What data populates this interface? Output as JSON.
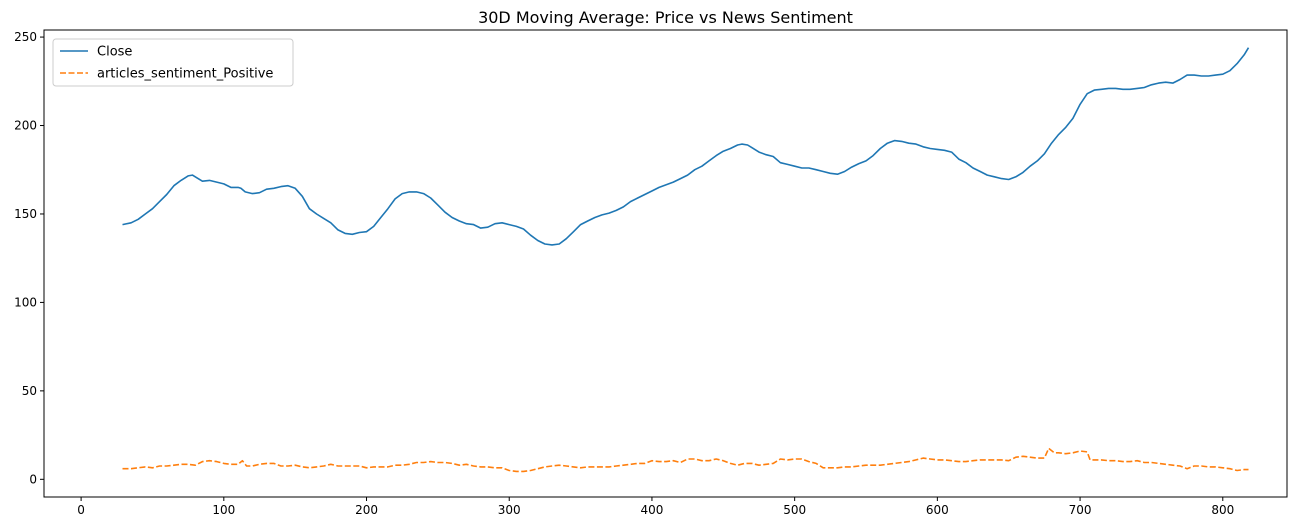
{
  "chart_data": {
    "type": "line",
    "title": "30D Moving Average: Price vs News Sentiment",
    "xlabel": "",
    "ylabel": "",
    "xlim": [
      -26,
      845
    ],
    "ylim": [
      -10,
      254
    ],
    "xticks": [
      0,
      100,
      200,
      300,
      400,
      500,
      600,
      700,
      800
    ],
    "yticks": [
      0,
      50,
      100,
      150,
      200,
      250
    ],
    "legend_position": "upper left",
    "colors": {
      "Close": "#1f77b4",
      "articles_sentiment_Positive": "#ff7f0e"
    },
    "series": [
      {
        "name": "Close",
        "style": "solid",
        "points": [
          [
            29,
            144
          ],
          [
            35,
            145
          ],
          [
            40,
            147
          ],
          [
            45,
            150
          ],
          [
            50,
            153
          ],
          [
            55,
            157
          ],
          [
            60,
            161
          ],
          [
            65,
            166
          ],
          [
            70,
            169
          ],
          [
            75,
            171.5
          ],
          [
            78,
            172
          ],
          [
            82,
            170
          ],
          [
            85,
            168.5
          ],
          [
            90,
            169
          ],
          [
            95,
            168
          ],
          [
            100,
            167
          ],
          [
            105,
            165
          ],
          [
            110,
            165
          ],
          [
            112,
            164.5
          ],
          [
            115,
            162.5
          ],
          [
            120,
            161.5
          ],
          [
            125,
            162
          ],
          [
            130,
            164
          ],
          [
            135,
            164.5
          ],
          [
            140,
            165.5
          ],
          [
            145,
            166
          ],
          [
            150,
            164.5
          ],
          [
            155,
            160
          ],
          [
            160,
            153
          ],
          [
            165,
            150
          ],
          [
            170,
            147.5
          ],
          [
            175,
            145
          ],
          [
            180,
            141
          ],
          [
            185,
            139
          ],
          [
            190,
            138.5
          ],
          [
            195,
            139.5
          ],
          [
            200,
            140
          ],
          [
            205,
            143
          ],
          [
            210,
            148
          ],
          [
            215,
            153
          ],
          [
            220,
            158.5
          ],
          [
            225,
            161.5
          ],
          [
            230,
            162.5
          ],
          [
            235,
            162.5
          ],
          [
            240,
            161.5
          ],
          [
            245,
            159
          ],
          [
            250,
            155
          ],
          [
            255,
            151
          ],
          [
            260,
            148
          ],
          [
            265,
            146
          ],
          [
            270,
            144.5
          ],
          [
            275,
            144
          ],
          [
            280,
            142
          ],
          [
            285,
            142.5
          ],
          [
            290,
            144.5
          ],
          [
            295,
            145
          ],
          [
            300,
            144
          ],
          [
            305,
            143
          ],
          [
            310,
            141.5
          ],
          [
            315,
            138
          ],
          [
            320,
            135
          ],
          [
            325,
            133
          ],
          [
            330,
            132.5
          ],
          [
            335,
            133
          ],
          [
            340,
            136
          ],
          [
            345,
            140
          ],
          [
            350,
            144
          ],
          [
            355,
            146
          ],
          [
            360,
            148
          ],
          [
            365,
            149.5
          ],
          [
            370,
            150.5
          ],
          [
            375,
            152
          ],
          [
            380,
            154
          ],
          [
            385,
            157
          ],
          [
            390,
            159
          ],
          [
            395,
            161
          ],
          [
            400,
            163
          ],
          [
            405,
            165
          ],
          [
            410,
            166.5
          ],
          [
            415,
            168
          ],
          [
            420,
            170
          ],
          [
            425,
            172
          ],
          [
            430,
            175
          ],
          [
            435,
            177
          ],
          [
            440,
            180
          ],
          [
            445,
            183
          ],
          [
            450,
            185.5
          ],
          [
            455,
            187
          ],
          [
            460,
            189
          ],
          [
            463,
            189.5
          ],
          [
            467,
            189
          ],
          [
            470,
            187.5
          ],
          [
            475,
            185
          ],
          [
            480,
            183.5
          ],
          [
            485,
            182.5
          ],
          [
            490,
            179
          ],
          [
            495,
            178
          ],
          [
            500,
            177
          ],
          [
            505,
            176
          ],
          [
            510,
            176
          ],
          [
            515,
            175
          ],
          [
            520,
            174
          ],
          [
            525,
            173
          ],
          [
            530,
            172.5
          ],
          [
            535,
            174
          ],
          [
            540,
            176.5
          ],
          [
            545,
            178.5
          ],
          [
            550,
            180
          ],
          [
            555,
            183
          ],
          [
            560,
            187
          ],
          [
            565,
            190
          ],
          [
            570,
            191.5
          ],
          [
            575,
            191
          ],
          [
            580,
            190
          ],
          [
            585,
            189.5
          ],
          [
            590,
            188
          ],
          [
            595,
            187
          ],
          [
            600,
            186.5
          ],
          [
            605,
            186
          ],
          [
            610,
            185
          ],
          [
            615,
            181
          ],
          [
            620,
            179
          ],
          [
            625,
            176
          ],
          [
            630,
            174
          ],
          [
            635,
            172
          ],
          [
            640,
            171
          ],
          [
            645,
            170
          ],
          [
            650,
            169.5
          ],
          [
            655,
            171
          ],
          [
            660,
            173.5
          ],
          [
            665,
            177
          ],
          [
            670,
            180
          ],
          [
            675,
            184
          ],
          [
            680,
            190
          ],
          [
            685,
            195
          ],
          [
            690,
            199
          ],
          [
            695,
            204
          ],
          [
            700,
            212
          ],
          [
            705,
            218
          ],
          [
            710,
            220
          ],
          [
            715,
            220.5
          ],
          [
            720,
            221
          ],
          [
            725,
            221
          ],
          [
            730,
            220.5
          ],
          [
            735,
            220.5
          ],
          [
            740,
            221
          ],
          [
            745,
            221.5
          ],
          [
            750,
            223
          ],
          [
            755,
            224
          ],
          [
            760,
            224.5
          ],
          [
            765,
            224
          ],
          [
            770,
            226
          ],
          [
            775,
            228.5
          ],
          [
            780,
            228.5
          ],
          [
            785,
            228
          ],
          [
            790,
            228
          ],
          [
            795,
            228.5
          ],
          [
            800,
            229
          ],
          [
            805,
            231
          ],
          [
            810,
            235
          ],
          [
            815,
            240
          ],
          [
            818,
            244
          ]
        ]
      },
      {
        "name": "articles_sentiment_Positive",
        "style": "dashed",
        "points": [
          [
            29,
            6
          ],
          [
            35,
            6
          ],
          [
            40,
            6.5
          ],
          [
            45,
            7
          ],
          [
            50,
            6.5
          ],
          [
            55,
            7.5
          ],
          [
            60,
            7.5
          ],
          [
            65,
            8
          ],
          [
            70,
            8.5
          ],
          [
            75,
            8.5
          ],
          [
            80,
            8
          ],
          [
            85,
            10
          ],
          [
            90,
            10.5
          ],
          [
            95,
            10
          ],
          [
            100,
            9
          ],
          [
            105,
            8.5
          ],
          [
            110,
            8.5
          ],
          [
            113,
            10.5
          ],
          [
            116,
            7.5
          ],
          [
            120,
            7.5
          ],
          [
            125,
            8.5
          ],
          [
            130,
            9
          ],
          [
            135,
            9
          ],
          [
            140,
            7.5
          ],
          [
            145,
            7.5
          ],
          [
            150,
            8
          ],
          [
            155,
            7
          ],
          [
            160,
            6.5
          ],
          [
            165,
            7
          ],
          [
            170,
            7.5
          ],
          [
            175,
            8.5
          ],
          [
            180,
            7.5
          ],
          [
            185,
            7.5
          ],
          [
            190,
            7.5
          ],
          [
            195,
            7.5
          ],
          [
            200,
            6.5
          ],
          [
            205,
            7
          ],
          [
            210,
            7
          ],
          [
            215,
            7
          ],
          [
            220,
            8
          ],
          [
            225,
            8
          ],
          [
            230,
            8.5
          ],
          [
            235,
            9.5
          ],
          [
            240,
            9.5
          ],
          [
            245,
            10
          ],
          [
            250,
            9.5
          ],
          [
            255,
            9.5
          ],
          [
            260,
            9
          ],
          [
            265,
            8
          ],
          [
            270,
            8.5
          ],
          [
            275,
            7.5
          ],
          [
            280,
            7
          ],
          [
            285,
            7
          ],
          [
            290,
            6.5
          ],
          [
            295,
            6.5
          ],
          [
            300,
            5
          ],
          [
            305,
            4.5
          ],
          [
            310,
            4.5
          ],
          [
            315,
            5
          ],
          [
            320,
            6
          ],
          [
            325,
            7
          ],
          [
            330,
            7.5
          ],
          [
            335,
            8
          ],
          [
            340,
            7.5
          ],
          [
            345,
            7
          ],
          [
            350,
            6.5
          ],
          [
            355,
            7
          ],
          [
            360,
            7
          ],
          [
            365,
            7
          ],
          [
            370,
            7
          ],
          [
            375,
            7.5
          ],
          [
            380,
            8
          ],
          [
            385,
            8.5
          ],
          [
            390,
            9
          ],
          [
            395,
            9
          ],
          [
            400,
            10.5
          ],
          [
            405,
            10
          ],
          [
            410,
            10
          ],
          [
            415,
            10.5
          ],
          [
            420,
            9.5
          ],
          [
            425,
            11.5
          ],
          [
            430,
            11.5
          ],
          [
            435,
            10.5
          ],
          [
            440,
            10.5
          ],
          [
            445,
            11.5
          ],
          [
            450,
            10.5
          ],
          [
            455,
            9
          ],
          [
            460,
            8
          ],
          [
            465,
            9
          ],
          [
            470,
            9
          ],
          [
            475,
            8
          ],
          [
            480,
            8.5
          ],
          [
            485,
            9
          ],
          [
            490,
            11.5
          ],
          [
            495,
            11
          ],
          [
            500,
            11.5
          ],
          [
            505,
            11.5
          ],
          [
            510,
            10
          ],
          [
            515,
            9
          ],
          [
            520,
            6.5
          ],
          [
            525,
            6.5
          ],
          [
            530,
            6.5
          ],
          [
            535,
            7
          ],
          [
            540,
            7
          ],
          [
            545,
            7.5
          ],
          [
            550,
            8
          ],
          [
            555,
            8
          ],
          [
            560,
            8
          ],
          [
            565,
            8.5
          ],
          [
            570,
            9
          ],
          [
            575,
            9.5
          ],
          [
            580,
            10
          ],
          [
            585,
            11
          ],
          [
            590,
            12
          ],
          [
            595,
            11.5
          ],
          [
            600,
            11
          ],
          [
            605,
            11
          ],
          [
            610,
            10.5
          ],
          [
            615,
            10
          ],
          [
            620,
            10
          ],
          [
            625,
            10.5
          ],
          [
            630,
            11
          ],
          [
            635,
            11
          ],
          [
            640,
            11
          ],
          [
            645,
            11
          ],
          [
            650,
            10.5
          ],
          [
            655,
            12.5
          ],
          [
            660,
            13
          ],
          [
            665,
            12.5
          ],
          [
            670,
            12
          ],
          [
            675,
            12
          ],
          [
            678,
            17.5
          ],
          [
            682,
            15
          ],
          [
            685,
            15
          ],
          [
            690,
            14.5
          ],
          [
            695,
            15
          ],
          [
            700,
            16
          ],
          [
            705,
            15.5
          ],
          [
            707,
            11
          ],
          [
            710,
            11
          ],
          [
            715,
            11
          ],
          [
            720,
            10.5
          ],
          [
            725,
            10.5
          ],
          [
            730,
            10
          ],
          [
            735,
            10
          ],
          [
            740,
            10.5
          ],
          [
            745,
            9.5
          ],
          [
            750,
            9.5
          ],
          [
            755,
            9
          ],
          [
            760,
            8.5
          ],
          [
            765,
            8
          ],
          [
            770,
            7.5
          ],
          [
            775,
            6
          ],
          [
            780,
            7.5
          ],
          [
            785,
            7.5
          ],
          [
            790,
            7
          ],
          [
            795,
            7
          ],
          [
            800,
            6.5
          ],
          [
            805,
            6
          ],
          [
            810,
            5
          ],
          [
            815,
            5.5
          ],
          [
            818,
            5.5
          ]
        ]
      }
    ]
  }
}
